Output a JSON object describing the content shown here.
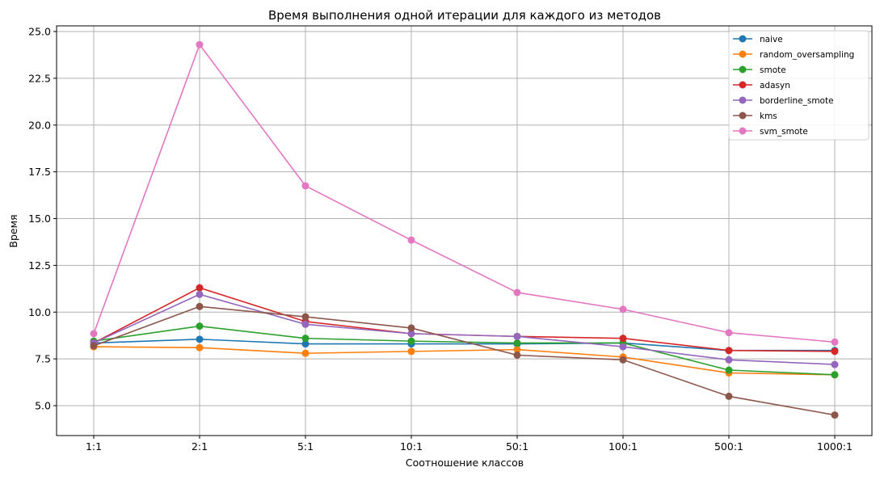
{
  "chart_data": {
    "type": "line",
    "title": "Время выполнения одной итерации для каждого из методов",
    "xlabel": "Соотношение классов",
    "ylabel": "Время",
    "categories": [
      "1:1",
      "2:1",
      "5:1",
      "10:1",
      "50:1",
      "100:1",
      "500:1",
      "1000:1"
    ],
    "ylim": [
      3.5,
      25.3
    ],
    "yticks": [
      "5.0",
      "7.5",
      "10.0",
      "12.5",
      "15.0",
      "17.5",
      "20.0",
      "22.5",
      "25.0"
    ],
    "grid": true,
    "legend_position": "upper right",
    "series": [
      {
        "name": "naive",
        "color": "#1f77b4",
        "values": [
          8.35,
          8.55,
          8.3,
          8.3,
          8.3,
          8.35,
          7.95,
          7.95
        ]
      },
      {
        "name": "random_oversampling",
        "color": "#ff7f0e",
        "values": [
          8.15,
          8.1,
          7.8,
          7.9,
          8.0,
          7.6,
          6.75,
          6.65
        ]
      },
      {
        "name": "smote",
        "color": "#2ca02c",
        "values": [
          8.45,
          9.25,
          8.6,
          8.45,
          8.35,
          8.35,
          6.9,
          6.65
        ]
      },
      {
        "name": "adasyn",
        "color": "#d62728",
        "values": [
          8.35,
          11.3,
          9.5,
          8.85,
          8.7,
          8.6,
          7.95,
          7.9
        ]
      },
      {
        "name": "borderline_smote",
        "color": "#9467bd",
        "values": [
          8.35,
          10.95,
          9.35,
          8.85,
          8.7,
          8.15,
          7.45,
          7.2
        ]
      },
      {
        "name": "kms",
        "color": "#8c564b",
        "values": [
          8.2,
          10.3,
          9.75,
          9.15,
          7.7,
          7.45,
          5.5,
          4.5
        ]
      },
      {
        "name": "svm_smote",
        "color": "#e377c2",
        "values": [
          8.85,
          24.3,
          16.75,
          13.85,
          11.05,
          10.15,
          8.9,
          8.4
        ]
      }
    ]
  }
}
